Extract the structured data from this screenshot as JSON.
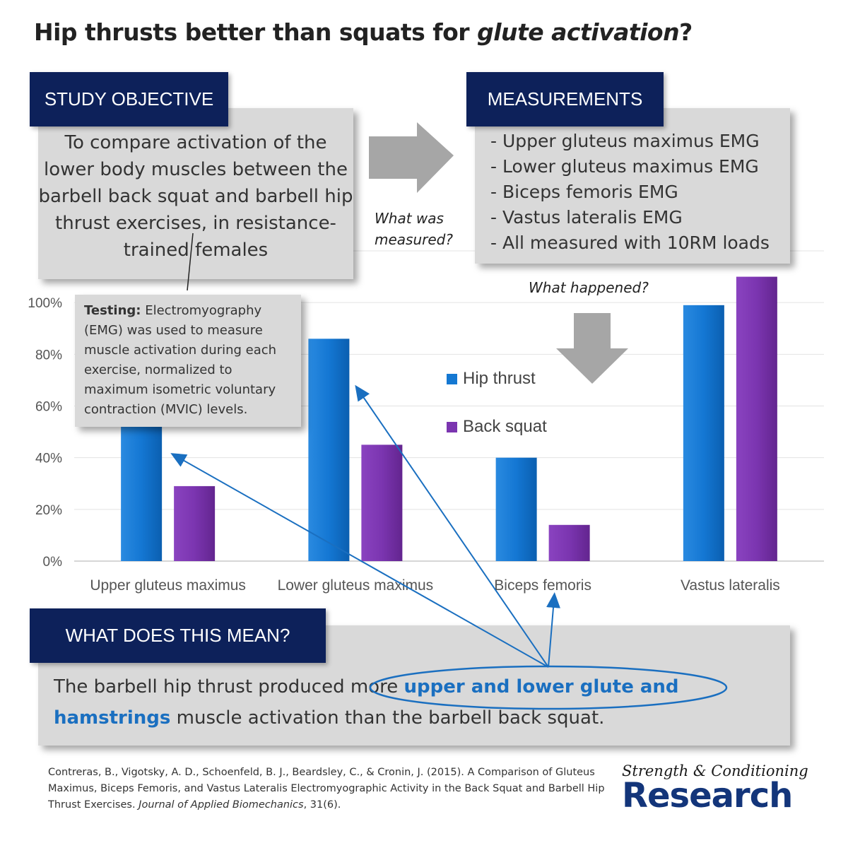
{
  "title_plain": "Hip thrusts better than squats for ",
  "title_italic": "glute activation",
  "title_end": "?",
  "objective": {
    "tab": "STUDY OBJECTIVE",
    "text": "To compare activation of the lower body muscles between the barbell back squat and barbell hip thrust exercises, in resistance-trained females"
  },
  "measurements": {
    "tab": "MEASUREMENTS",
    "items": [
      "- Upper gluteus maximus EMG",
      "- Lower gluteus maximus EMG",
      "- Biceps femoris EMG",
      "- Vastus lateralis EMG",
      "- All measured with 10RM loads"
    ]
  },
  "annotations": {
    "what_was_1": "What was",
    "what_was_2": "measured?",
    "what_happened": "What happened?"
  },
  "testing": {
    "label": "Testing:",
    "text": " Electromyography (EMG) was used to measure muscle activation during each exercise, normalized to maximum isometric voluntary contraction (MVIC) levels."
  },
  "meaning": {
    "tab": "WHAT DOES THIS MEAN?",
    "before": "The barbell hip thrust produced more ",
    "highlight": "upper and lower glute and hamstrings",
    "after": " muscle activation than the barbell back squat."
  },
  "citation": {
    "main": "Contreras, B., Vigotsky, A. D., Schoenfeld, B. J., Beardsley, C., & Cronin, J. (2015). A Comparison of Gluteus Maximus, Biceps Femoris, and Vastus Lateralis Electromyographic Activity in the Back Squat and Barbell Hip Thrust Exercises. ",
    "journal": "Journal of Applied Biomechanics",
    "end": ", 31(6)."
  },
  "brand": {
    "script": "Strength & Conditioning",
    "main": "Research"
  },
  "colors": {
    "navy": "#0d215a",
    "hip_thrust": "#1478d2",
    "back_squat": "#7b35b0",
    "arrow_blue": "#1a6fc0"
  },
  "chart_data": {
    "type": "bar",
    "categories": [
      "Upper gluteus maximus",
      "Lower gluteus maximus",
      "Biceps femoris",
      "Vastus lateralis"
    ],
    "series": [
      {
        "name": "Hip thrust",
        "values": [
          60,
          86,
          40,
          99
        ]
      },
      {
        "name": "Back squat",
        "values": [
          29,
          45,
          14,
          110
        ]
      }
    ],
    "yticks": [
      "0%",
      "20%",
      "40%",
      "60%",
      "80%",
      "100%"
    ],
    "ytick_values": [
      0,
      20,
      40,
      60,
      80,
      100
    ],
    "ylim": [
      0,
      120
    ],
    "grid": true,
    "legend_position": "center"
  }
}
